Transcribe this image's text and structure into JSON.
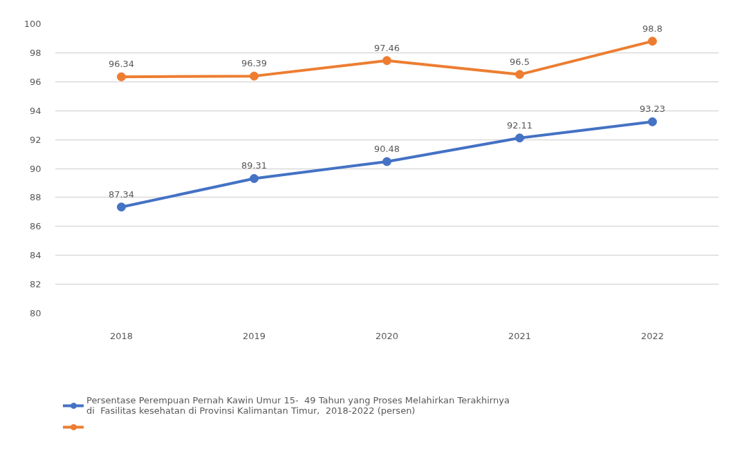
{
  "chart_data": {
    "type": "line",
    "categories": [
      "2018",
      "2019",
      "2020",
      "2021",
      "2022"
    ],
    "series": [
      {
        "name": "Persentase Perempuan Pernah Kawin Umur 15-  49 Tahun yang Proses Melahirkan Terakhirnya di  Fasilitas kesehatan di Provinsi Kalimantan Timur,  2018-2022 (persen)",
        "color": "#4472c4",
        "values": [
          87.34,
          89.31,
          90.48,
          92.11,
          93.23
        ]
      },
      {
        "color": "#ed7d31",
        "values": [
          96.34,
          96.39,
          97.46,
          96.5,
          98.8
        ]
      }
    ],
    "ylim": [
      80,
      100
    ],
    "yticks": [
      80,
      82,
      84,
      86,
      88,
      90,
      92,
      94,
      96,
      98,
      100
    ],
    "grid": "y",
    "legend": "bottom",
    "marker": "circle",
    "line_style": "solid",
    "data_labels": true
  }
}
